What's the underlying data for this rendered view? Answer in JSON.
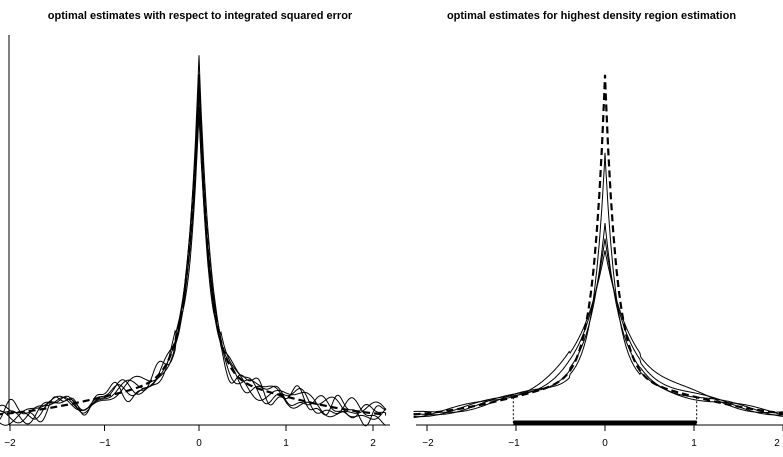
{
  "panels": [
    {
      "title": "optimal estimates with respect to integrated squared error",
      "x_tick_labels": [
        "−2",
        "−1",
        "0",
        "1",
        "2"
      ]
    },
    {
      "title": "optimal estimates for highest density region estimation",
      "x_tick_labels": [
        "−2",
        "−1",
        "0",
        "1",
        "2"
      ]
    }
  ],
  "chart_data": [
    {
      "type": "line",
      "title": "optimal estimates with respect to integrated squared error",
      "xlim": [
        -2.15,
        2.15
      ],
      "ylim": [
        0,
        1
      ],
      "y_axis_ticks": "none",
      "x_ticks": [
        -2,
        -1,
        0,
        1,
        2
      ],
      "true_density": {
        "style": "dashed",
        "peak": 0.85
      },
      "series": [
        {
          "style": "solid",
          "peak": 0.93,
          "wiggle_amplitude": 0.02
        },
        {
          "style": "solid",
          "peak": 0.88,
          "wiggle_amplitude": 0.018
        },
        {
          "style": "solid",
          "peak": 0.84,
          "wiggle_amplitude": 0.022
        },
        {
          "style": "solid",
          "peak": 0.8,
          "wiggle_amplitude": 0.016
        },
        {
          "style": "solid",
          "peak": 0.77,
          "wiggle_amplitude": 0.024
        }
      ]
    },
    {
      "type": "line",
      "title": "optimal estimates for highest density region estimation",
      "xlim": [
        -2.15,
        2.15
      ],
      "ylim": [
        0,
        1
      ],
      "y_axis_ticks": "none",
      "x_ticks": [
        -2,
        -1,
        0,
        1,
        2
      ],
      "true_density": {
        "style": "dashed",
        "peak": 0.88
      },
      "series": [
        {
          "style": "solid",
          "peak": 0.68
        },
        {
          "style": "solid",
          "peak": 0.5
        },
        {
          "style": "solid",
          "peak": 0.46
        },
        {
          "style": "solid",
          "peak": 0.43
        }
      ],
      "highest_density_region": {
        "from": -1.03,
        "to": 1.03
      }
    }
  ]
}
